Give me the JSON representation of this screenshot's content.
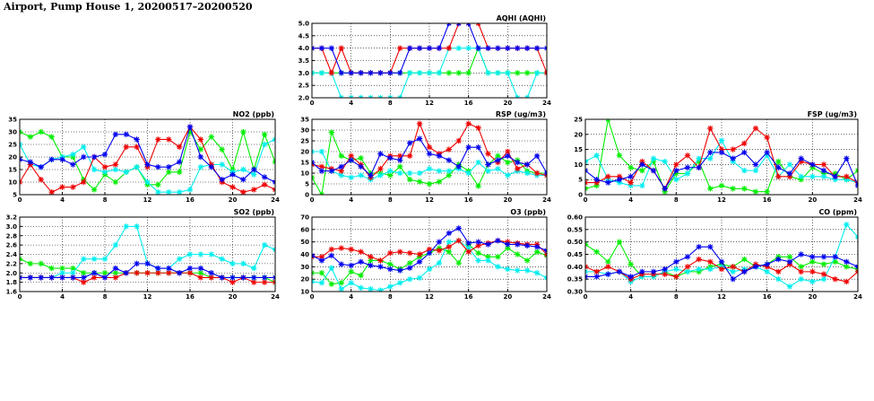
{
  "page": {
    "title": "Airport, Pump House 1, 20200517–20200520"
  },
  "colors": {
    "blue": "#0000ee",
    "red": "#ee0000",
    "cyan": "#00eeee",
    "green": "#00ee00",
    "grid": "#000000"
  },
  "chart_data": [
    {
      "id": "aqhi",
      "type": "line",
      "title": "AQHI (AQHI)",
      "xlim": [
        0,
        24
      ],
      "ylim": [
        2.0,
        5.0
      ],
      "xticks": [
        "0",
        "4",
        "8",
        "12",
        "16",
        "20",
        "24"
      ],
      "yticks": [
        "2.0",
        "2.5",
        "3.0",
        "3.5",
        "4.0",
        "4.5",
        "5.0"
      ],
      "grid": true,
      "series": [
        {
          "color": "blue",
          "values": [
            4,
            4,
            4,
            3,
            3,
            3,
            3,
            3,
            3,
            3,
            4,
            4,
            4,
            4,
            5,
            5,
            5,
            4,
            4,
            4,
            4,
            4,
            4,
            4,
            4
          ]
        },
        {
          "color": "red",
          "values": [
            4,
            4,
            3,
            4,
            3,
            3,
            3,
            3,
            3,
            4,
            4,
            4,
            4,
            4,
            4,
            5,
            5,
            5,
            4,
            4,
            4,
            4,
            4,
            4,
            3
          ]
        },
        {
          "color": "cyan",
          "values": [
            3,
            3,
            3,
            2,
            2,
            2,
            2,
            2,
            2,
            2,
            3,
            3,
            3,
            3,
            4,
            4,
            4,
            4,
            3,
            3,
            3,
            2,
            2,
            3,
            3
          ]
        },
        {
          "color": "green",
          "values": [
            3,
            3,
            3,
            3,
            3,
            3,
            3,
            3,
            3,
            3,
            3,
            3,
            3,
            3,
            3,
            3,
            3,
            4,
            3,
            3,
            3,
            3,
            3,
            3,
            3
          ]
        }
      ]
    },
    {
      "id": "no2",
      "type": "line",
      "title": "NO2 (ppb)",
      "xlim": [
        0,
        24
      ],
      "ylim": [
        5,
        35
      ],
      "xticks": [
        "0",
        "4",
        "8",
        "12",
        "16",
        "20",
        "24"
      ],
      "yticks": [
        "5",
        "10",
        "15",
        "20",
        "25",
        "30",
        "35"
      ],
      "grid": true,
      "series": [
        {
          "color": "blue",
          "values": [
            19,
            18,
            16,
            19,
            19,
            17,
            20,
            20,
            21,
            29,
            29,
            27,
            17,
            16,
            16,
            18,
            32,
            20,
            16,
            11,
            13,
            11,
            15,
            12,
            10
          ]
        },
        {
          "color": "red",
          "values": [
            10,
            17,
            11,
            6,
            8,
            8,
            10,
            20,
            16,
            17,
            24,
            24,
            16,
            27,
            27,
            24,
            32,
            27,
            17,
            10,
            8,
            6,
            7,
            9,
            7
          ]
        },
        {
          "color": "cyan",
          "values": [
            25,
            17,
            16,
            19,
            20,
            21,
            24,
            15,
            14,
            15,
            14,
            16,
            10,
            6,
            6,
            6,
            7,
            16,
            17,
            17,
            14,
            15,
            13,
            25,
            27
          ]
        },
        {
          "color": "green",
          "values": [
            30,
            28,
            30,
            28,
            20,
            20,
            11,
            7,
            13,
            10,
            14,
            16,
            9,
            9,
            14,
            14,
            30,
            23,
            28,
            23,
            15,
            30,
            15,
            29,
            18
          ]
        }
      ]
    },
    {
      "id": "rsp",
      "type": "line",
      "title": "RSP (ug/m3)",
      "xlim": [
        0,
        24
      ],
      "ylim": [
        0,
        35
      ],
      "xticks": [
        "0",
        "4",
        "8",
        "12",
        "16",
        "20",
        "24"
      ],
      "yticks": [
        "0",
        "5",
        "10",
        "15",
        "20",
        "25",
        "30",
        "35"
      ],
      "grid": true,
      "series": [
        {
          "color": "blue",
          "values": [
            15,
            11,
            11,
            13,
            16,
            13,
            9,
            19,
            17,
            16,
            24,
            26,
            19,
            18,
            16,
            13,
            22,
            22,
            14,
            16,
            18,
            15,
            14,
            18,
            10
          ]
        },
        {
          "color": "red",
          "values": [
            14,
            13,
            12,
            11,
            18,
            14,
            8,
            12,
            18,
            18,
            18,
            33,
            22,
            19,
            21,
            25,
            33,
            31,
            19,
            15,
            20,
            12,
            14,
            10,
            9
          ]
        },
        {
          "color": "cyan",
          "values": [
            20,
            20,
            11,
            9,
            8,
            9,
            7,
            9,
            11,
            10,
            10,
            10,
            12,
            11,
            11,
            12,
            10,
            15,
            11,
            12,
            9,
            11,
            10,
            9,
            9
          ]
        },
        {
          "color": "green",
          "values": [
            8,
            0,
            29,
            18,
            16,
            17,
            10,
            10,
            9,
            13,
            7,
            6,
            5,
            6,
            9,
            14,
            11,
            4,
            14,
            18,
            15,
            16,
            11,
            10,
            10
          ]
        }
      ]
    },
    {
      "id": "fsp",
      "type": "line",
      "title": "FSP (ug/m3)",
      "xlim": [
        0,
        24
      ],
      "ylim": [
        0,
        25
      ],
      "xticks": [
        "0",
        "4",
        "8",
        "12",
        "16",
        "20",
        "24"
      ],
      "yticks": [
        "0",
        "5",
        "10",
        "15",
        "20",
        "25"
      ],
      "grid": true,
      "series": [
        {
          "color": "blue",
          "values": [
            8,
            5,
            4,
            5,
            6,
            10,
            8,
            2,
            8,
            9,
            9,
            14,
            14,
            12,
            14,
            10,
            14,
            9,
            7,
            12,
            10,
            8,
            6,
            12,
            3
          ]
        },
        {
          "color": "red",
          "values": [
            4,
            4,
            6,
            6,
            4,
            11,
            8,
            2,
            10,
            13,
            9,
            22,
            15,
            15,
            17,
            22,
            19,
            6,
            6,
            11,
            10,
            10,
            6,
            6,
            4
          ]
        },
        {
          "color": "cyan",
          "values": [
            11,
            13,
            5,
            4,
            3,
            3,
            12,
            11,
            5,
            7,
            12,
            12,
            18,
            11,
            8,
            8,
            13,
            6,
            10,
            6,
            6,
            6,
            5,
            5,
            4
          ]
        },
        {
          "color": "green",
          "values": [
            2,
            3,
            25,
            13,
            9,
            8,
            11,
            1,
            7,
            7,
            11,
            2,
            3,
            2,
            2,
            1,
            1,
            11,
            6,
            5,
            9,
            7,
            7,
            5,
            8
          ]
        }
      ]
    },
    {
      "id": "so2",
      "type": "line",
      "title": "SO2 (ppb)",
      "xlim": [
        0,
        24
      ],
      "ylim": [
        1.6,
        3.2
      ],
      "xticks": [
        "0",
        "4",
        "8",
        "12",
        "16",
        "20",
        "24"
      ],
      "yticks": [
        "1.6",
        "1.8",
        "2.0",
        "2.2",
        "2.4",
        "2.6",
        "2.8",
        "3.0",
        "3.2"
      ],
      "grid": true,
      "series": [
        {
          "color": "blue",
          "values": [
            1.9,
            1.9,
            1.9,
            1.9,
            1.9,
            1.9,
            1.9,
            2.0,
            1.9,
            2.1,
            2.0,
            2.2,
            2.2,
            2.1,
            2.1,
            2.0,
            2.1,
            2.1,
            2.0,
            1.9,
            1.9,
            1.9,
            1.9,
            1.9,
            1.9
          ]
        },
        {
          "color": "red",
          "values": [
            1.9,
            1.9,
            1.9,
            1.9,
            1.9,
            1.9,
            1.8,
            1.9,
            1.9,
            1.9,
            2.0,
            2.0,
            2.0,
            2.0,
            2.0,
            2.0,
            2.0,
            1.9,
            1.9,
            1.9,
            1.8,
            1.9,
            1.8,
            1.8,
            1.8
          ]
        },
        {
          "color": "cyan",
          "values": [
            1.9,
            1.9,
            1.9,
            1.9,
            2.0,
            2.0,
            2.3,
            2.3,
            2.3,
            2.6,
            3.0,
            3.0,
            2.2,
            2.1,
            2.1,
            2.3,
            2.4,
            2.4,
            2.4,
            2.3,
            2.2,
            2.2,
            2.1,
            2.6,
            2.5
          ]
        },
        {
          "color": "green",
          "values": [
            2.3,
            2.2,
            2.2,
            2.1,
            2.1,
            2.1,
            2.0,
            2.0,
            2.0,
            2.0,
            2.0,
            2.0,
            2.0,
            2.0,
            2.0,
            2.0,
            2.0,
            2.0,
            1.9,
            1.9,
            1.9,
            1.9,
            1.9,
            1.9,
            1.8
          ]
        }
      ]
    },
    {
      "id": "o3",
      "type": "line",
      "title": "O3 (ppb)",
      "xlim": [
        0,
        24
      ],
      "ylim": [
        10,
        70
      ],
      "xticks": [
        "0",
        "4",
        "8",
        "12",
        "16",
        "20",
        "24"
      ],
      "yticks": [
        "10",
        "20",
        "30",
        "40",
        "50",
        "60",
        "70"
      ],
      "grid": true,
      "series": [
        {
          "color": "blue",
          "values": [
            39,
            35,
            39,
            32,
            31,
            34,
            31,
            30,
            28,
            27,
            29,
            34,
            41,
            50,
            57,
            61,
            49,
            50,
            48,
            51,
            48,
            48,
            47,
            46,
            43
          ]
        },
        {
          "color": "red",
          "values": [
            38,
            38,
            44,
            45,
            44,
            42,
            38,
            35,
            41,
            42,
            41,
            40,
            44,
            43,
            46,
            51,
            42,
            47,
            49,
            51,
            50,
            49,
            48,
            48,
            40
          ]
        },
        {
          "color": "cyan",
          "values": [
            18,
            17,
            29,
            12,
            17,
            13,
            12,
            11,
            14,
            17,
            20,
            21,
            28,
            33,
            50,
            51,
            45,
            35,
            35,
            30,
            28,
            27,
            27,
            25,
            21
          ]
        },
        {
          "color": "green",
          "values": [
            25,
            25,
            16,
            17,
            26,
            23,
            35,
            35,
            32,
            28,
            33,
            38,
            41,
            45,
            42,
            33,
            48,
            41,
            38,
            38,
            45,
            40,
            35,
            42,
            39
          ]
        }
      ]
    },
    {
      "id": "co",
      "type": "line",
      "title": "CO (ppm)",
      "xlim": [
        0,
        24
      ],
      "ylim": [
        0.3,
        0.6
      ],
      "xticks": [
        "0",
        "4",
        "8",
        "12",
        "16",
        "20",
        "24"
      ],
      "yticks": [
        "0.30",
        "0.35",
        "0.40",
        "0.45",
        "0.50",
        "0.55",
        "0.60"
      ],
      "grid": true,
      "series": [
        {
          "color": "blue",
          "values": [
            0.36,
            0.36,
            0.37,
            0.38,
            0.36,
            0.38,
            0.38,
            0.39,
            0.42,
            0.44,
            0.48,
            0.48,
            0.42,
            0.35,
            0.38,
            0.4,
            0.41,
            0.43,
            0.42,
            0.45,
            0.44,
            0.44,
            0.44,
            0.42,
            0.4
          ]
        },
        {
          "color": "red",
          "values": [
            0.4,
            0.38,
            0.4,
            0.38,
            0.35,
            0.37,
            0.37,
            0.37,
            0.36,
            0.4,
            0.43,
            0.42,
            0.39,
            0.4,
            0.38,
            0.41,
            0.4,
            0.38,
            0.41,
            0.38,
            0.38,
            0.37,
            0.35,
            0.34,
            0.38
          ]
        },
        {
          "color": "cyan",
          "values": [
            0.38,
            0.38,
            0.37,
            0.38,
            0.34,
            0.36,
            0.36,
            0.38,
            0.39,
            0.38,
            0.39,
            0.39,
            0.4,
            0.38,
            0.39,
            0.4,
            0.38,
            0.35,
            0.32,
            0.35,
            0.34,
            0.35,
            0.44,
            0.57,
            0.52
          ]
        },
        {
          "color": "green",
          "values": [
            0.49,
            0.46,
            0.42,
            0.5,
            0.41,
            0.36,
            0.36,
            0.38,
            0.36,
            0.38,
            0.38,
            0.4,
            0.41,
            0.4,
            0.43,
            0.4,
            0.41,
            0.44,
            0.44,
            0.4,
            0.42,
            0.41,
            0.42,
            0.4,
            0.39
          ]
        }
      ]
    }
  ]
}
